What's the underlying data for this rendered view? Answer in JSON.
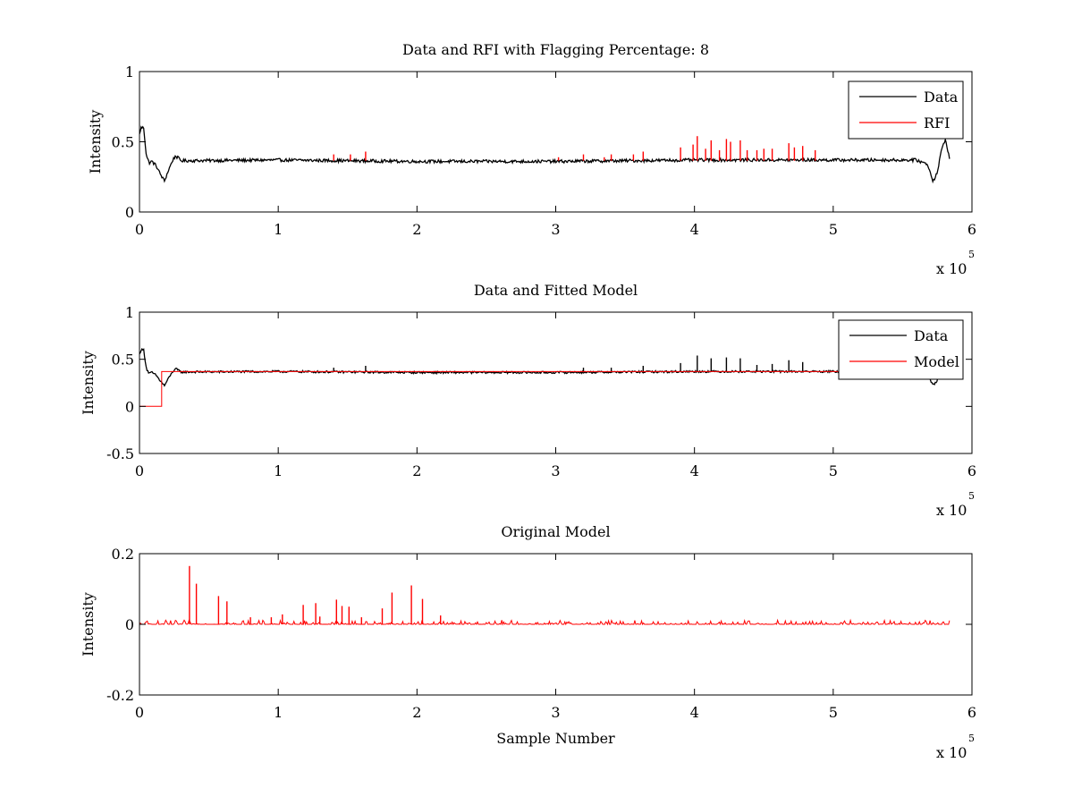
{
  "figure": {
    "background": "#ffffff",
    "colors": {
      "data": "#000000",
      "rfi": "#ff0000",
      "model": "#ff0000"
    }
  },
  "chart_data": [
    {
      "id": "p1",
      "type": "line",
      "title": "Data and RFI with Flagging Percentage: 8",
      "xlabel": "",
      "ylabel": "Intensity",
      "xlim": [
        0,
        600000
      ],
      "ylim": [
        0,
        1
      ],
      "xticks": [
        0,
        1,
        2,
        3,
        4,
        5,
        6
      ],
      "yticks": [
        0,
        0.5,
        1
      ],
      "x_exponent": {
        "base": "x 10",
        "power": "5"
      },
      "legend": {
        "position": "top-right",
        "entries": [
          {
            "label": "Data",
            "color": "#000000"
          },
          {
            "label": "RFI",
            "color": "#ff0000"
          }
        ]
      },
      "series": [
        {
          "name": "Data",
          "color": "#000000",
          "baseline": 0.365,
          "x": [
            0,
            1000,
            3000,
            5000,
            7000,
            9000,
            12000,
            15000,
            18000,
            21000,
            24000,
            26000,
            30000,
            100000,
            200000,
            300000,
            400000,
            500000,
            560000,
            568000,
            572000,
            575000,
            578000,
            581000,
            584000
          ],
          "y": [
            0.55,
            0.6,
            0.6,
            0.4,
            0.35,
            0.36,
            0.33,
            0.27,
            0.22,
            0.3,
            0.37,
            0.4,
            0.365,
            0.37,
            0.36,
            0.36,
            0.37,
            0.37,
            0.37,
            0.34,
            0.22,
            0.28,
            0.44,
            0.52,
            0.37
          ]
        },
        {
          "name": "RFI",
          "color": "#ff0000",
          "spikes": [
            {
              "x": 140000,
              "y": 0.41
            },
            {
              "x": 152000,
              "y": 0.41
            },
            {
              "x": 163000,
              "y": 0.43
            },
            {
              "x": 302000,
              "y": 0.39
            },
            {
              "x": 320000,
              "y": 0.41
            },
            {
              "x": 335000,
              "y": 0.39
            },
            {
              "x": 340000,
              "y": 0.41
            },
            {
              "x": 356000,
              "y": 0.41
            },
            {
              "x": 363000,
              "y": 0.43
            },
            {
              "x": 390000,
              "y": 0.46
            },
            {
              "x": 399000,
              "y": 0.48
            },
            {
              "x": 402000,
              "y": 0.54
            },
            {
              "x": 408000,
              "y": 0.45
            },
            {
              "x": 412000,
              "y": 0.51
            },
            {
              "x": 418000,
              "y": 0.44
            },
            {
              "x": 423000,
              "y": 0.52
            },
            {
              "x": 426000,
              "y": 0.5
            },
            {
              "x": 433000,
              "y": 0.51
            },
            {
              "x": 438000,
              "y": 0.44
            },
            {
              "x": 445000,
              "y": 0.44
            },
            {
              "x": 450000,
              "y": 0.45
            },
            {
              "x": 456000,
              "y": 0.45
            },
            {
              "x": 468000,
              "y": 0.49
            },
            {
              "x": 472000,
              "y": 0.46
            },
            {
              "x": 478000,
              "y": 0.47
            },
            {
              "x": 487000,
              "y": 0.44
            }
          ]
        }
      ]
    },
    {
      "id": "p2",
      "type": "line",
      "title": "Data and Fitted Model",
      "xlabel": "",
      "ylabel": "Intensity",
      "xlim": [
        0,
        600000
      ],
      "ylim": [
        -0.5,
        1
      ],
      "xticks": [
        0,
        1,
        2,
        3,
        4,
        5,
        6
      ],
      "yticks": [
        -0.5,
        0,
        0.5,
        1
      ],
      "x_exponent": {
        "base": "x 10",
        "power": "5"
      },
      "legend": {
        "position": "top-right",
        "entries": [
          {
            "label": "Data",
            "color": "#000000"
          },
          {
            "label": "Model",
            "color": "#ff0000"
          }
        ]
      },
      "series": [
        {
          "name": "Data",
          "color": "#000000",
          "baseline": 0.365,
          "x": [
            0,
            1000,
            3000,
            5000,
            7000,
            9000,
            12000,
            15000,
            18000,
            21000,
            24000,
            26000,
            30000,
            100000,
            200000,
            300000,
            400000,
            500000,
            560000,
            568000,
            572000,
            575000,
            578000,
            581000,
            584000
          ],
          "y": [
            0.55,
            0.6,
            0.6,
            0.4,
            0.35,
            0.36,
            0.33,
            0.27,
            0.22,
            0.3,
            0.37,
            0.4,
            0.365,
            0.37,
            0.36,
            0.36,
            0.37,
            0.37,
            0.37,
            0.34,
            0.22,
            0.28,
            0.44,
            0.52,
            0.37
          ],
          "spikes": [
            {
              "x": 140000,
              "y": 0.41
            },
            {
              "x": 163000,
              "y": 0.43
            },
            {
              "x": 320000,
              "y": 0.41
            },
            {
              "x": 340000,
              "y": 0.41
            },
            {
              "x": 363000,
              "y": 0.43
            },
            {
              "x": 390000,
              "y": 0.46
            },
            {
              "x": 402000,
              "y": 0.54
            },
            {
              "x": 412000,
              "y": 0.51
            },
            {
              "x": 423000,
              "y": 0.52
            },
            {
              "x": 433000,
              "y": 0.51
            },
            {
              "x": 445000,
              "y": 0.44
            },
            {
              "x": 456000,
              "y": 0.45
            },
            {
              "x": 468000,
              "y": 0.49
            },
            {
              "x": 478000,
              "y": 0.47
            }
          ]
        },
        {
          "name": "Model",
          "color": "#ff0000",
          "x": [
            0,
            16000,
            16000,
            584000
          ],
          "y": [
            0,
            0,
            0.37,
            0.37
          ]
        }
      ]
    },
    {
      "id": "p3",
      "type": "line",
      "title": "Original Model",
      "xlabel": "Sample Number",
      "ylabel": "Intensity",
      "xlim": [
        0,
        600000
      ],
      "ylim": [
        -0.2,
        0.2
      ],
      "xticks": [
        0,
        1,
        2,
        3,
        4,
        5,
        6
      ],
      "yticks": [
        -0.2,
        0,
        0.2
      ],
      "x_exponent": {
        "base": "x 10",
        "power": "5"
      },
      "series": [
        {
          "name": "",
          "color": "#ff0000",
          "baseline": 0.0,
          "x_end": 584000,
          "spikes": [
            {
              "x": 36000,
              "y": 0.165
            },
            {
              "x": 41000,
              "y": 0.115
            },
            {
              "x": 57000,
              "y": 0.08
            },
            {
              "x": 63000,
              "y": 0.065
            },
            {
              "x": 103000,
              "y": 0.028
            },
            {
              "x": 118000,
              "y": 0.055
            },
            {
              "x": 127000,
              "y": 0.06
            },
            {
              "x": 142000,
              "y": 0.07
            },
            {
              "x": 146000,
              "y": 0.052
            },
            {
              "x": 151000,
              "y": 0.05
            },
            {
              "x": 175000,
              "y": 0.045
            },
            {
              "x": 182000,
              "y": 0.09
            },
            {
              "x": 196000,
              "y": 0.11
            },
            {
              "x": 204000,
              "y": 0.072
            },
            {
              "x": 217000,
              "y": 0.025
            },
            {
              "x": 80000,
              "y": 0.02
            },
            {
              "x": 95000,
              "y": 0.02
            },
            {
              "x": 130000,
              "y": 0.022
            },
            {
              "x": 160000,
              "y": 0.02
            }
          ]
        }
      ]
    }
  ]
}
